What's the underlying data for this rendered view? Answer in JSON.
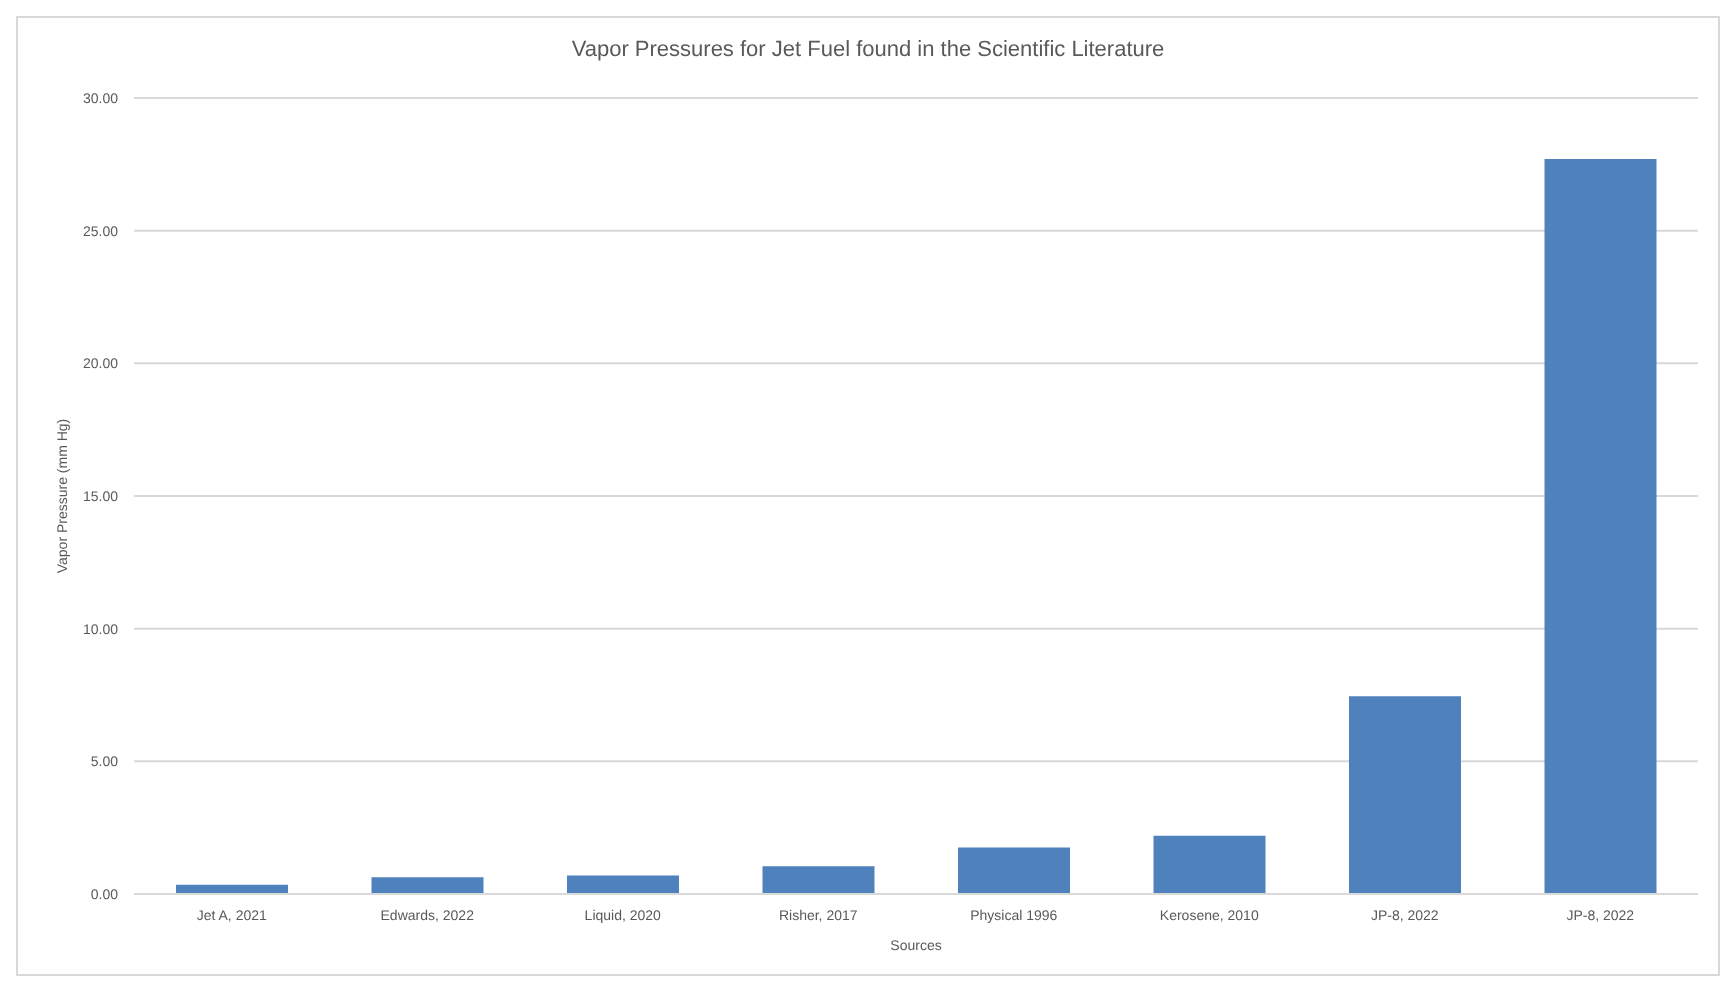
{
  "chart_data": {
    "type": "bar",
    "title": "Vapor Pressures for Jet Fuel found in the Scientific Literature",
    "xlabel": "Sources",
    "ylabel": "Vapor Pressure (mm Hg)",
    "categories": [
      "Jet A, 2021",
      "Edwards, 2022",
      "Liquid, 2020",
      "Risher, 2017",
      "Physical 1996",
      "Kerosene, 2010",
      "JP-8, 2022",
      "JP-8, 2022"
    ],
    "values": [
      0.35,
      0.63,
      0.7,
      1.05,
      1.75,
      2.2,
      7.45,
      27.7
    ],
    "color": "#4f81bd",
    "ylim": [
      0,
      30
    ],
    "yticks": [
      {
        "value": 0,
        "label": "0.00"
      },
      {
        "value": 5,
        "label": "5.00"
      },
      {
        "value": 10,
        "label": "10.00"
      },
      {
        "value": 15,
        "label": "15.00"
      },
      {
        "value": 20,
        "label": "20.00"
      },
      {
        "value": 25,
        "label": "25.00"
      },
      {
        "value": 30,
        "label": "30.00"
      }
    ],
    "grid": "y"
  }
}
